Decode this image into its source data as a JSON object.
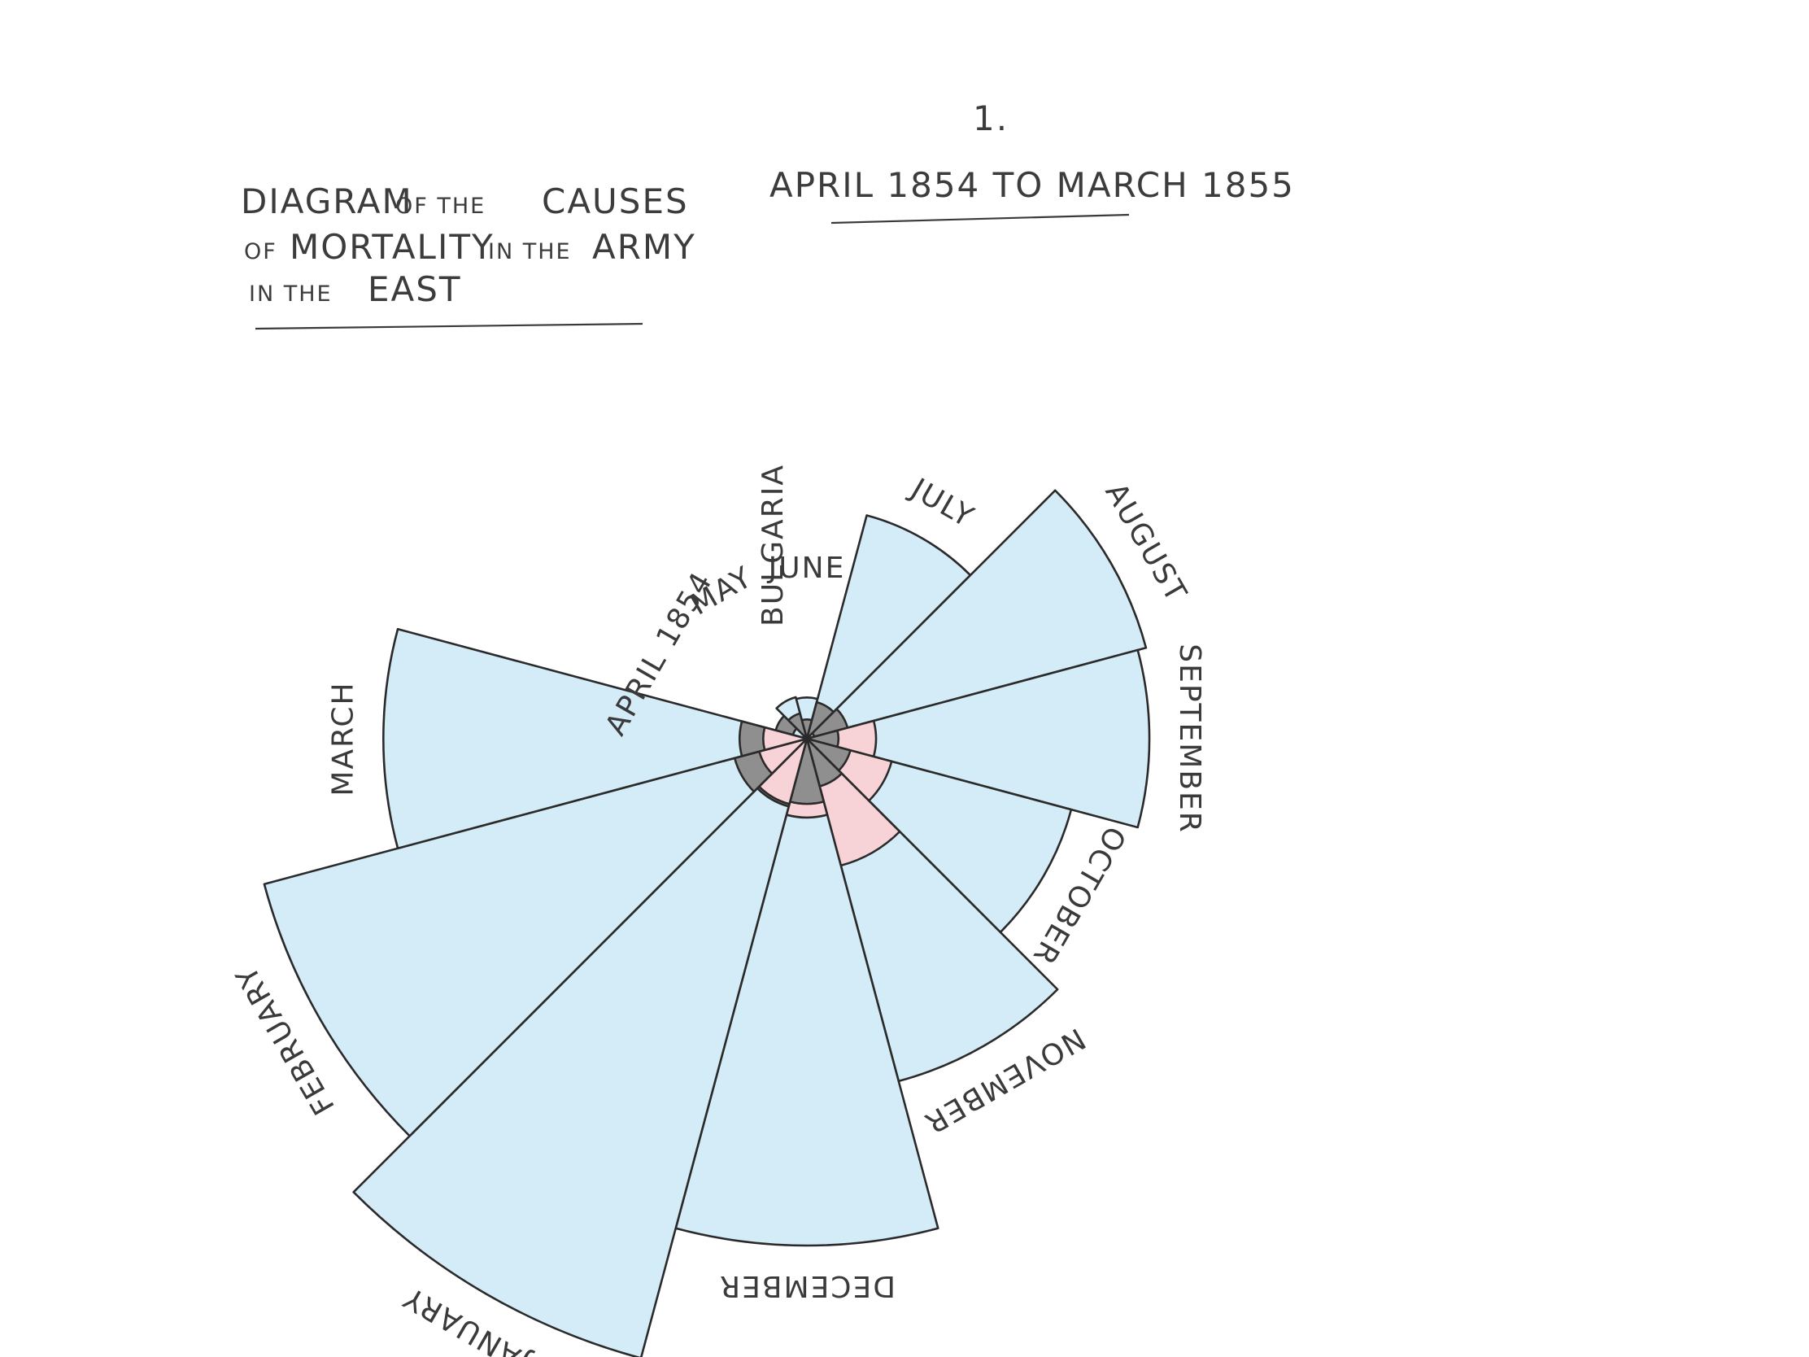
{
  "page_number": "1.",
  "subtitle": "APRIL 1854 TO MARCH 1855",
  "title": {
    "line1": [
      "DIAGRAM",
      "OF THE",
      "CAUSES"
    ],
    "line2": [
      "OF",
      "MORTALITY",
      "IN THE",
      "ARMY"
    ],
    "line3": [
      "IN THE",
      "EAST"
    ]
  },
  "colors": {
    "outer": "#d4ebf8",
    "middle": "#8f8f8f",
    "inner": "#f7d3d8",
    "stroke": "#2a2a2a"
  },
  "chart_data": {
    "type": "polar-area",
    "title": "DIAGRAM OF THE CAUSES OF MORTALITY IN THE ARMY IN THE EAST",
    "subtitle": "APRIL 1854 TO MARCH 1855",
    "annotation": "BULGARIA",
    "note": "wedge area proportional to value; layers drawn largest to smallest from the same centre",
    "series": [
      {
        "color": "#d4ebf8",
        "values": [
          1.4,
          12.4,
          11.4,
          359,
          828,
          788,
          503,
          844,
          1725,
          2761,
          2120,
          1205
        ]
      },
      {
        "color": "#8f8f8f",
        "values": [
          7,
          4.6,
          2.5,
          9.6,
          11.9,
          6.7,
          13.6,
          16.3,
          28.5,
          33,
          37.6,
          30.4
        ]
      },
      {
        "color": "#f7d3d8",
        "values": [
          0,
          0,
          0,
          0,
          0.4,
          32.1,
          51.7,
          115.8,
          41.7,
          30.7,
          16.3,
          12.8
        ]
      }
    ],
    "months": [
      {
        "label": "APRIL 1854"
      },
      {
        "label": "MAY"
      },
      {
        "label": "JUNE"
      },
      {
        "label": "JULY"
      },
      {
        "label": "AUGUST"
      },
      {
        "label": "SEPTEMBER"
      },
      {
        "label": "OCTOBER"
      },
      {
        "label": "NOVEMBER"
      },
      {
        "label": "DECEMBER"
      },
      {
        "label": "JANUARY"
      },
      {
        "label": "FEBRUARY"
      },
      {
        "label": "MARCH"
      }
    ]
  }
}
